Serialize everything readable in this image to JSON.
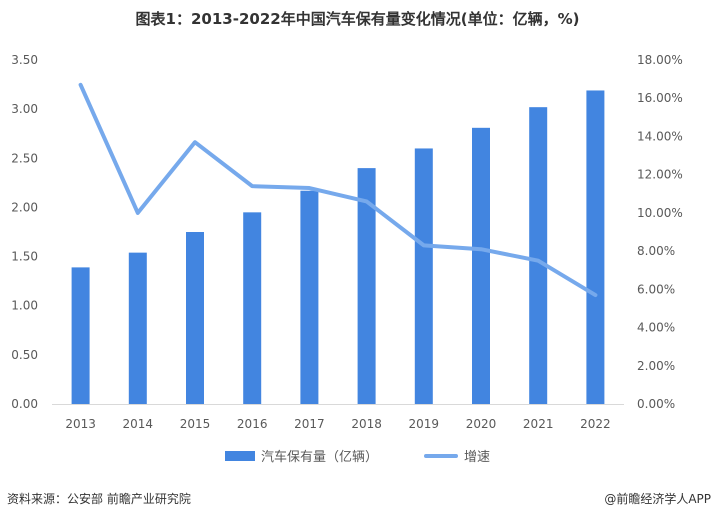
{
  "title": "图表1：2013-2022年中国汽车保有量变化情况(单位：亿辆，%)",
  "chart_data": {
    "type": "bar+line",
    "title": "图表1：2013-2022年中国汽车保有量变化情况(单位：亿辆，%)",
    "categories": [
      "2013",
      "2014",
      "2015",
      "2016",
      "2017",
      "2018",
      "2019",
      "2020",
      "2021",
      "2022"
    ],
    "series": [
      {
        "name": "汽车保有量（亿辆）",
        "type": "bar",
        "axis": "left",
        "color": "#4285e0",
        "values": [
          1.39,
          1.54,
          1.75,
          1.95,
          2.17,
          2.4,
          2.6,
          2.81,
          3.02,
          3.19
        ]
      },
      {
        "name": "增速",
        "type": "line",
        "axis": "right",
        "color": "#76a9ec",
        "values": [
          16.7,
          10.0,
          13.7,
          11.4,
          11.3,
          10.6,
          8.3,
          8.1,
          7.5,
          5.7
        ]
      }
    ],
    "left_axis": {
      "ylim": [
        0,
        3.5
      ],
      "ticks": [
        "0.00",
        "0.50",
        "1.00",
        "1.50",
        "2.00",
        "2.50",
        "3.00",
        "3.50"
      ]
    },
    "right_axis": {
      "ylim": [
        0,
        18
      ],
      "ticks": [
        "0.00%",
        "2.00%",
        "4.00%",
        "6.00%",
        "8.00%",
        "10.00%",
        "12.00%",
        "14.00%",
        "16.00%",
        "18.00%"
      ]
    },
    "grid": false,
    "legend_position": "bottom"
  },
  "legend": {
    "bar": "汽车保有量（亿辆）",
    "line": "增速"
  },
  "source": "资料来源：公安部 前瞻产业研究院",
  "credit": "@前瞻经济学人APP"
}
